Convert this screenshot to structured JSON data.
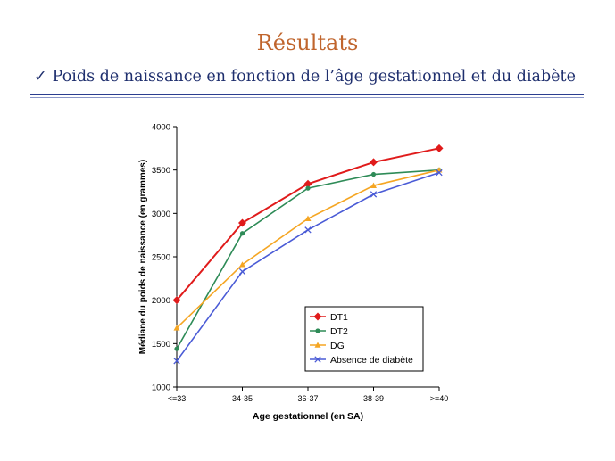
{
  "slide": {
    "title": "Résultats",
    "check_glyph": "✓",
    "subtitle": "Poids de naissance en fonction de l’âge gestationnel et du diabète"
  },
  "chart_data": {
    "type": "line",
    "categories": [
      "<=33",
      "34-35",
      "36-37",
      "38-39",
      ">=40"
    ],
    "xlabel": "Age gestationnel (en SA)",
    "ylabel": "Médiane du poids de naissance (en grammes)",
    "ylim": [
      1000,
      4000
    ],
    "yticks": [
      1000,
      1500,
      2000,
      2500,
      3000,
      3500,
      4000
    ],
    "grid": false,
    "legend_position": "bottom-right",
    "series": [
      {
        "name": "DT1",
        "color": "#e01b1b",
        "marker": "diamond",
        "values": [
          2000,
          2890,
          3340,
          3590,
          3750
        ]
      },
      {
        "name": "DT2",
        "color": "#2e8b57",
        "marker": "circle",
        "values": [
          1440,
          2770,
          3290,
          3450,
          3500
        ]
      },
      {
        "name": "DG",
        "color": "#f5a623",
        "marker": "triangle",
        "values": [
          1680,
          2410,
          2940,
          3320,
          3500
        ]
      },
      {
        "name": "Absence de diabète",
        "color": "#4a5bd6",
        "marker": "x",
        "values": [
          1300,
          2330,
          2810,
          3220,
          3470
        ]
      }
    ]
  }
}
